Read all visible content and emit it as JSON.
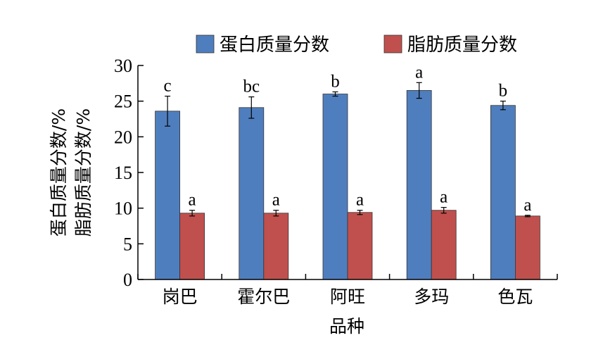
{
  "chart_data": {
    "type": "bar",
    "categories": [
      "岗巴",
      "霍尔巴",
      "阿旺",
      "多玛",
      "色瓦"
    ],
    "series": [
      {
        "name": "蛋白质量分数",
        "color": "#4F7EBE",
        "values": [
          23.6,
          24.1,
          26.0,
          26.5,
          24.4
        ],
        "errors": [
          2.1,
          1.5,
          0.3,
          1.1,
          0.6
        ],
        "sig_labels": [
          "c",
          "bc",
          "b",
          "a",
          "b"
        ]
      },
      {
        "name": "脂肪质量分数",
        "color": "#C0504D",
        "values": [
          9.3,
          9.3,
          9.4,
          9.7,
          8.9
        ],
        "errors": [
          0.4,
          0.4,
          0.3,
          0.4,
          0.1
        ],
        "sig_labels": [
          "a",
          "a",
          "a",
          "a",
          "a"
        ]
      }
    ],
    "xlabel": "品种",
    "ylabel_lines": [
      "蛋白质量分数/%",
      "脂肪质量分数/%"
    ],
    "ylim": [
      0,
      30
    ],
    "yticks": [
      0,
      5,
      10,
      15,
      20,
      25,
      30
    ],
    "legend_position": "top",
    "grid": false
  }
}
